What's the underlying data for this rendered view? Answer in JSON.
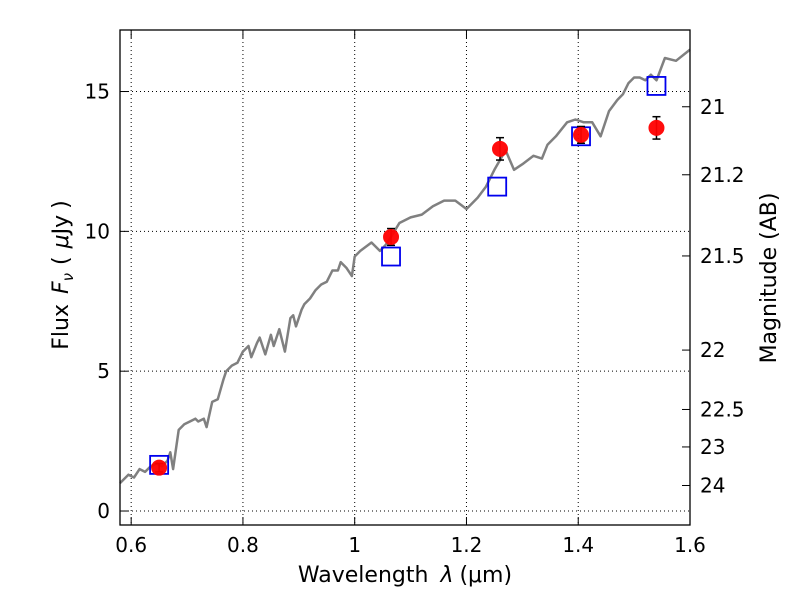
{
  "chart_data": {
    "type": "scatter",
    "title": "",
    "xlabel": "Wavelength  λ (μm)",
    "xlabel_prefix": "Wavelength",
    "xlabel_symbol": "λ",
    "xlabel_unit": "(μm)",
    "ylabel_prefix": "Flux",
    "ylabel_symbol": "F",
    "ylabel_subscript": "ν",
    "ylabel_open": "(",
    "ylabel_mu": "μ",
    "ylabel_unit": "Jy",
    "ylabel_close": ")",
    "y2label": "Magnitude (AB)",
    "xlim": [
      0.58,
      1.6
    ],
    "ylim": [
      -0.5,
      17.2
    ],
    "xticks": [
      {
        "value": 0.6,
        "label": "0.6"
      },
      {
        "value": 0.8,
        "label": "0.8"
      },
      {
        "value": 1.0,
        "label": "1"
      },
      {
        "value": 1.2,
        "label": "1.2"
      },
      {
        "value": 1.4,
        "label": "1.4"
      },
      {
        "value": 1.6,
        "label": "1.6"
      }
    ],
    "yticks": [
      {
        "value": 0,
        "label": "0"
      },
      {
        "value": 5,
        "label": "5"
      },
      {
        "value": 10,
        "label": "10"
      },
      {
        "value": 15,
        "label": "15"
      }
    ],
    "y2ticks": [
      {
        "mag": 21,
        "label": "21"
      },
      {
        "mag": 21.2,
        "label": "21.2"
      },
      {
        "mag": 21.5,
        "label": "21.5"
      },
      {
        "mag": 22,
        "label": "22"
      },
      {
        "mag": 22.5,
        "label": "22.5"
      },
      {
        "mag": 23,
        "label": "23"
      },
      {
        "mag": 24,
        "label": "24"
      }
    ],
    "grid": true,
    "model_spectrum": {
      "color": "#808080",
      "x": [
        0.58,
        0.595,
        0.605,
        0.615,
        0.625,
        0.635,
        0.645,
        0.655,
        0.665,
        0.67,
        0.675,
        0.685,
        0.695,
        0.705,
        0.715,
        0.72,
        0.73,
        0.735,
        0.745,
        0.755,
        0.765,
        0.77,
        0.78,
        0.79,
        0.8,
        0.81,
        0.815,
        0.825,
        0.83,
        0.84,
        0.85,
        0.855,
        0.865,
        0.87,
        0.875,
        0.885,
        0.89,
        0.895,
        0.905,
        0.91,
        0.92,
        0.93,
        0.94,
        0.95,
        0.96,
        0.97,
        0.975,
        0.985,
        0.995,
        1.0,
        1.01,
        1.03,
        1.045,
        1.055,
        1.065,
        1.08,
        1.1,
        1.12,
        1.14,
        1.16,
        1.18,
        1.2,
        1.22,
        1.235,
        1.25,
        1.27,
        1.285,
        1.3,
        1.32,
        1.335,
        1.345,
        1.36,
        1.38,
        1.395,
        1.41,
        1.425,
        1.44,
        1.455,
        1.47,
        1.48,
        1.49,
        1.5,
        1.51,
        1.52,
        1.53,
        1.54,
        1.555,
        1.575,
        1.6
      ],
      "y": [
        1.0,
        1.3,
        1.2,
        1.5,
        1.4,
        1.6,
        1.7,
        1.6,
        1.8,
        2.1,
        1.5,
        2.9,
        3.1,
        3.2,
        3.3,
        3.2,
        3.3,
        3.0,
        3.9,
        4.0,
        4.7,
        5.0,
        5.2,
        5.3,
        5.7,
        5.9,
        5.5,
        6.0,
        6.2,
        5.6,
        6.3,
        5.9,
        6.5,
        6.1,
        5.7,
        6.9,
        7.0,
        6.6,
        7.2,
        7.4,
        7.6,
        7.9,
        8.1,
        8.2,
        8.6,
        8.6,
        8.9,
        8.7,
        8.4,
        9.1,
        9.3,
        9.6,
        9.3,
        9.5,
        9.8,
        10.3,
        10.5,
        10.6,
        10.9,
        11.1,
        11.1,
        10.8,
        11.2,
        11.6,
        12.2,
        12.9,
        12.2,
        12.4,
        12.7,
        12.6,
        13.1,
        13.4,
        13.9,
        14.0,
        13.9,
        13.9,
        13.4,
        14.3,
        14.7,
        14.9,
        15.3,
        15.5,
        15.5,
        15.4,
        15.6,
        15.4,
        16.2,
        16.1,
        16.5
      ]
    },
    "synthetic_photometry": {
      "color": "#0000ee",
      "points": [
        {
          "x": 0.65,
          "y": 1.65
        },
        {
          "x": 1.065,
          "y": 9.1
        },
        {
          "x": 1.255,
          "y": 11.6
        },
        {
          "x": 1.405,
          "y": 13.4
        },
        {
          "x": 1.54,
          "y": 15.2
        }
      ]
    },
    "observed_photometry": {
      "color": "#ff0000",
      "points": [
        {
          "x": 0.65,
          "y": 1.55,
          "err": 0.15
        },
        {
          "x": 1.065,
          "y": 9.8,
          "err": 0.3
        },
        {
          "x": 1.26,
          "y": 12.95,
          "err": 0.4
        },
        {
          "x": 1.405,
          "y": 13.45,
          "err": 0.3
        },
        {
          "x": 1.54,
          "y": 13.7,
          "err": 0.4
        }
      ]
    }
  }
}
